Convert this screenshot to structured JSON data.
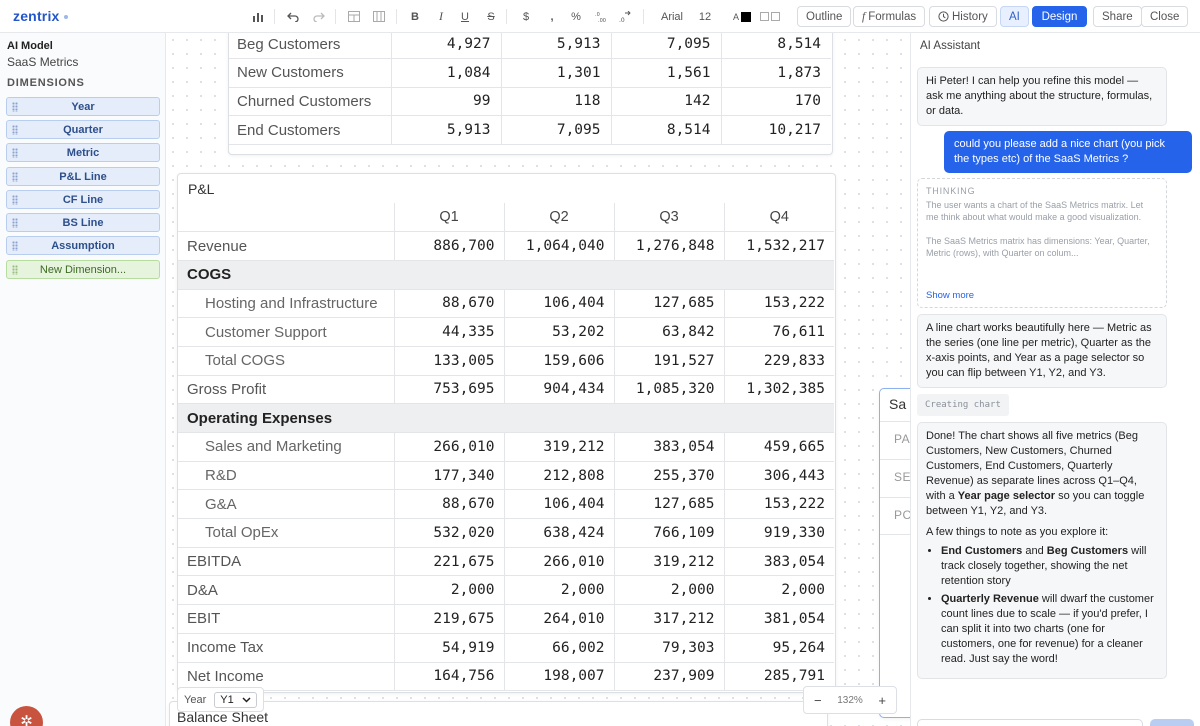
{
  "app": {
    "logo": "zentrix"
  },
  "toolbar": {
    "font_name": "Arial",
    "font_size": "12",
    "bold": "B",
    "italic": "I",
    "underline": "U",
    "strike": "S",
    "currency": "$",
    "comma": ",",
    "percent": "%",
    "decimals": ".00",
    "outline_label": "Outline",
    "formulas_label": "Formulas",
    "history_label": "History",
    "ai_label": "AI",
    "design_label": "Design",
    "share_label": "Share",
    "close_label": "Close",
    "text_color_letter": "A"
  },
  "sidebar": {
    "model_label": "AI Model",
    "model_name": "SaaS Metrics",
    "dimensions_label": "DIMENSIONS",
    "dimensions": [
      "Year",
      "Quarter",
      "Metric",
      "P&L Line",
      "CF Line",
      "BS Line",
      "Assumption"
    ],
    "new_dimension_label": "New Dimension..."
  },
  "customers_table": {
    "rows": [
      {
        "label": "Beg Customers",
        "values": [
          "4,927",
          "5,913",
          "7,095",
          "8,514"
        ]
      },
      {
        "label": "New Customers",
        "values": [
          "1,084",
          "1,301",
          "1,561",
          "1,873"
        ]
      },
      {
        "label": "Churned Customers",
        "values": [
          "99",
          "118",
          "142",
          "170"
        ]
      },
      {
        "label": "End Customers",
        "values": [
          "5,913",
          "7,095",
          "8,514",
          "10,217"
        ]
      }
    ]
  },
  "pl": {
    "title": "P&L",
    "columns": [
      "Q1",
      "Q2",
      "Q3",
      "Q4"
    ],
    "rows": [
      {
        "label": "Revenue",
        "values": [
          "886,700",
          "1,064,040",
          "1,276,848",
          "1,532,217"
        ]
      },
      {
        "label": "COGS",
        "section": true
      },
      {
        "label": "Hosting and Infrastructure",
        "indent": true,
        "values": [
          "88,670",
          "106,404",
          "127,685",
          "153,222"
        ]
      },
      {
        "label": "Customer Support",
        "indent": true,
        "values": [
          "44,335",
          "53,202",
          "63,842",
          "76,611"
        ]
      },
      {
        "label": "Total COGS",
        "indent": true,
        "values": [
          "133,005",
          "159,606",
          "191,527",
          "229,833"
        ]
      },
      {
        "label": "Gross Profit",
        "values": [
          "753,695",
          "904,434",
          "1,085,320",
          "1,302,385"
        ]
      },
      {
        "label": "Operating Expenses",
        "section": true
      },
      {
        "label": "Sales and Marketing",
        "indent": true,
        "values": [
          "266,010",
          "319,212",
          "383,054",
          "459,665"
        ]
      },
      {
        "label": "R&D",
        "indent": true,
        "values": [
          "177,340",
          "212,808",
          "255,370",
          "306,443"
        ]
      },
      {
        "label": "G&A",
        "indent": true,
        "values": [
          "88,670",
          "106,404",
          "127,685",
          "153,222"
        ]
      },
      {
        "label": "Total OpEx",
        "indent": true,
        "values": [
          "532,020",
          "638,424",
          "766,109",
          "919,330"
        ]
      },
      {
        "label": "EBITDA",
        "values": [
          "221,675",
          "266,010",
          "319,212",
          "383,054"
        ]
      },
      {
        "label": "D&A",
        "values": [
          "2,000",
          "2,000",
          "2,000",
          "2,000"
        ]
      },
      {
        "label": "EBIT",
        "values": [
          "219,675",
          "264,010",
          "317,212",
          "381,054"
        ]
      },
      {
        "label": "Income Tax",
        "values": [
          "54,919",
          "66,002",
          "79,303",
          "95,264"
        ]
      },
      {
        "label": "Net Income",
        "values": [
          "164,756",
          "198,007",
          "237,909",
          "285,791"
        ]
      }
    ]
  },
  "chart_card": {
    "title_partial": "Sa",
    "row_labels": [
      "PA",
      "SE",
      "PC"
    ]
  },
  "year_selector": {
    "label": "Year",
    "value": "Y1"
  },
  "balance_sheet": {
    "title": "Balance Sheet"
  },
  "zoom": {
    "level": "132%",
    "minus": "−",
    "plus": "+"
  },
  "ai": {
    "header": "AI Assistant",
    "greeting": "Hi Peter! I can help you refine this model — ask me anything about the structure, formulas, or data.",
    "user_message": "could you please add a nice chart (you pick the types etc) of the SaaS Metrics ?",
    "thinking_label": "THINKING",
    "thinking_text_1": "The user wants a chart of the SaaS Metrics matrix. Let me think about what would make a good visualization.",
    "thinking_text_2": "The SaaS Metrics matrix has dimensions: Year, Quarter, Metric (rows), with Quarter on colum...",
    "show_more": "Show more",
    "reply_1": "A line chart works beautifully here — Metric as the series (one line per metric), Quarter as the x-axis points, and Year as a page selector so you can flip between Y1, Y2, and Y3.",
    "creating_label": "Creating chart",
    "done_a": "Done! The chart shows all five metrics (Beg Customers, New Customers, Churned Customers, End Customers, Quarterly Revenue) as separate lines across Q1–Q4, with a ",
    "done_b": "Year page selector",
    "done_c": " so you can toggle between Y1, Y2, and Y3.",
    "notes_intro": "A few things to note as you explore it:",
    "note1_a": "End Customers",
    "note1_b": " and ",
    "note1_c": "Beg Customers",
    "note1_d": " will track closely together, showing the net retention story",
    "note2_a": "Quarterly Revenue",
    "note2_b": " will dwarf the customer count lines due to scale — if you'd prefer, I can split it into two charts (one for customers, one for revenue) for a cleaner read. Just say the word!"
  }
}
